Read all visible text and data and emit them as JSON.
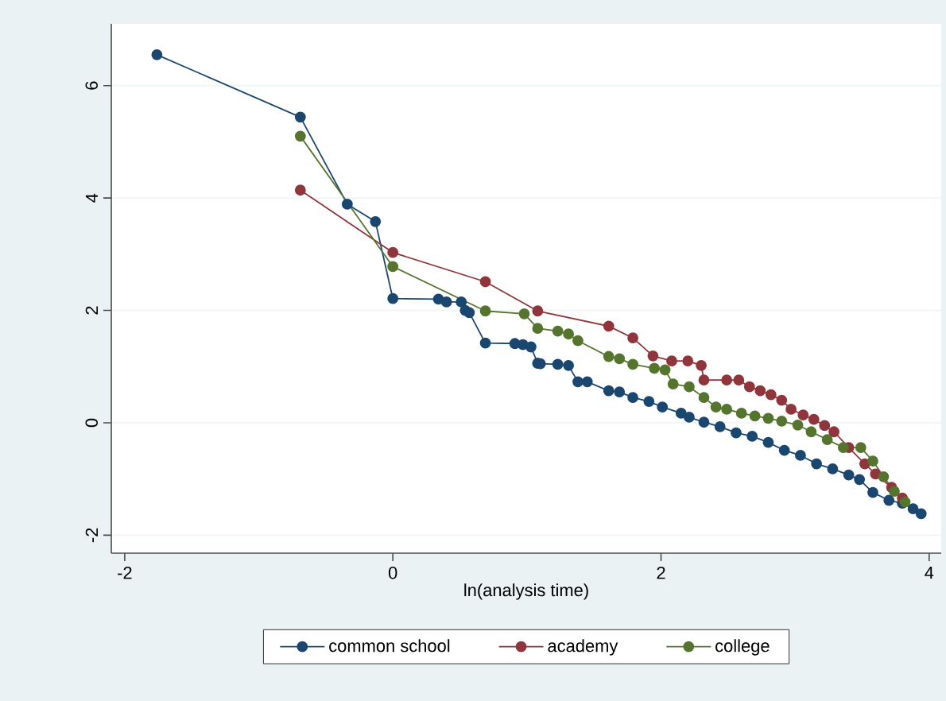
{
  "chart_data": {
    "type": "line",
    "xlabel": "ln(analysis time)",
    "series": [
      {
        "name": "common school",
        "color": "#1a476f",
        "x": [
          -1.76,
          -0.69,
          -0.34,
          -0.13,
          0,
          0.34,
          0.4,
          0.51,
          0.54,
          0.57,
          0.69,
          0.91,
          0.97,
          1.03,
          1.08,
          1.1,
          1.23,
          1.31,
          1.38,
          1.45,
          1.61,
          1.69,
          1.79,
          1.91,
          2.01,
          2.15,
          2.21,
          2.32,
          2.44,
          2.56,
          2.68,
          2.8,
          2.92,
          3.04,
          3.16,
          3.28,
          3.4,
          3.48,
          3.58,
          3.7,
          3.8,
          3.88,
          3.94
        ],
        "values": [
          6.55,
          5.44,
          3.89,
          3.58,
          2.21,
          2.2,
          2.15,
          2.15,
          2.0,
          1.96,
          1.42,
          1.41,
          1.39,
          1.35,
          1.06,
          1.05,
          1.04,
          1.02,
          0.73,
          0.73,
          0.57,
          0.55,
          0.45,
          0.38,
          0.28,
          0.17,
          0.1,
          0.01,
          -0.07,
          -0.18,
          -0.24,
          -0.35,
          -0.49,
          -0.58,
          -0.73,
          -0.82,
          -0.93,
          -1.01,
          -1.24,
          -1.38,
          -1.43,
          -1.53,
          -1.62
        ]
      },
      {
        "name": "academy",
        "color": "#90353b",
        "x": [
          -0.69,
          0,
          0.69,
          1.08,
          1.61,
          1.79,
          1.94,
          2.08,
          2.2,
          2.3,
          2.32,
          2.49,
          2.58,
          2.66,
          2.74,
          2.82,
          2.9,
          2.97,
          3.06,
          3.14,
          3.22,
          3.29,
          3.4,
          3.52,
          3.6,
          3.72,
          3.8
        ],
        "values": [
          4.14,
          3.03,
          2.51,
          1.99,
          1.72,
          1.51,
          1.19,
          1.1,
          1.1,
          1.02,
          0.76,
          0.76,
          0.76,
          0.64,
          0.57,
          0.5,
          0.4,
          0.24,
          0.14,
          0.06,
          -0.05,
          -0.16,
          -0.44,
          -0.73,
          -0.91,
          -1.15,
          -1.34
        ]
      },
      {
        "name": "college",
        "color": "#55752f",
        "x": [
          -0.69,
          0,
          0.69,
          0.98,
          1.08,
          1.23,
          1.31,
          1.38,
          1.61,
          1.69,
          1.79,
          1.95,
          2.03,
          2.09,
          2.21,
          2.32,
          2.41,
          2.49,
          2.6,
          2.7,
          2.8,
          2.9,
          3.02,
          3.12,
          3.24,
          3.36,
          3.49,
          3.58,
          3.66,
          3.74,
          3.82
        ],
        "values": [
          5.1,
          2.78,
          1.99,
          1.94,
          1.68,
          1.63,
          1.58,
          1.46,
          1.18,
          1.14,
          1.04,
          0.97,
          0.94,
          0.69,
          0.64,
          0.45,
          0.28,
          0.24,
          0.17,
          0.12,
          0.08,
          0.03,
          -0.04,
          -0.16,
          -0.3,
          -0.44,
          -0.44,
          -0.68,
          -0.96,
          -1.22,
          -1.41
        ]
      }
    ],
    "xlim": [
      -2.1,
      4.09
    ],
    "ylim": [
      -2.32,
      7.1
    ],
    "xticks": [
      -2,
      0,
      2,
      4
    ],
    "yticks": [
      -2,
      0,
      2,
      4,
      6
    ],
    "grid": "y",
    "legend": "bottom",
    "marker": "circle",
    "line_style": "solid"
  }
}
